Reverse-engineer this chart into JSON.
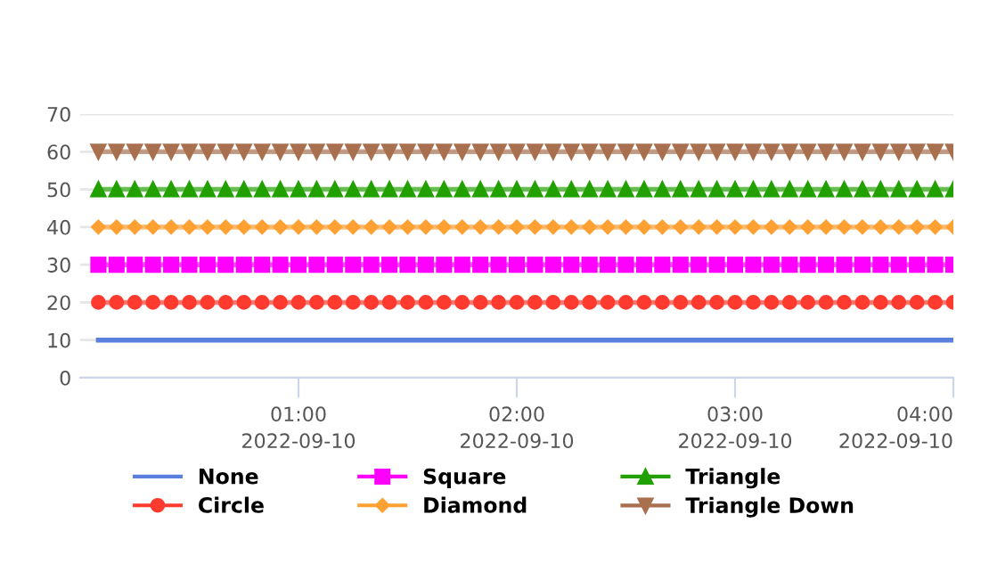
{
  "chart_data": {
    "type": "line",
    "x": [
      "2022-09-10T00:05",
      "2022-09-10T00:10",
      "2022-09-10T00:15",
      "2022-09-10T00:20",
      "2022-09-10T00:25",
      "2022-09-10T00:30",
      "2022-09-10T00:35",
      "2022-09-10T00:40",
      "2022-09-10T00:45",
      "2022-09-10T00:50",
      "2022-09-10T00:55",
      "2022-09-10T01:00",
      "2022-09-10T01:05",
      "2022-09-10T01:10",
      "2022-09-10T01:15",
      "2022-09-10T01:20",
      "2022-09-10T01:25",
      "2022-09-10T01:30",
      "2022-09-10T01:35",
      "2022-09-10T01:40",
      "2022-09-10T01:45",
      "2022-09-10T01:50",
      "2022-09-10T01:55",
      "2022-09-10T02:00",
      "2022-09-10T02:05",
      "2022-09-10T02:10",
      "2022-09-10T02:15",
      "2022-09-10T02:20",
      "2022-09-10T02:25",
      "2022-09-10T02:30",
      "2022-09-10T02:35",
      "2022-09-10T02:40",
      "2022-09-10T02:45",
      "2022-09-10T02:50",
      "2022-09-10T02:55",
      "2022-09-10T03:00",
      "2022-09-10T03:05",
      "2022-09-10T03:10",
      "2022-09-10T03:15",
      "2022-09-10T03:20",
      "2022-09-10T03:25",
      "2022-09-10T03:30",
      "2022-09-10T03:35",
      "2022-09-10T03:40",
      "2022-09-10T03:45",
      "2022-09-10T03:50",
      "2022-09-10T03:55",
      "2022-09-10T04:00"
    ],
    "series": [
      {
        "name": "None",
        "color": "#5b7fdd",
        "marker": "none",
        "values": [
          10,
          10,
          10,
          10,
          10,
          10,
          10,
          10,
          10,
          10,
          10,
          10,
          10,
          10,
          10,
          10,
          10,
          10,
          10,
          10,
          10,
          10,
          10,
          10,
          10,
          10,
          10,
          10,
          10,
          10,
          10,
          10,
          10,
          10,
          10,
          10,
          10,
          10,
          10,
          10,
          10,
          10,
          10,
          10,
          10,
          10,
          10,
          10
        ]
      },
      {
        "name": "Circle",
        "color": "#ff3a2e",
        "marker": "circle",
        "values": [
          20,
          20,
          20,
          20,
          20,
          20,
          20,
          20,
          20,
          20,
          20,
          20,
          20,
          20,
          20,
          20,
          20,
          20,
          20,
          20,
          20,
          20,
          20,
          20,
          20,
          20,
          20,
          20,
          20,
          20,
          20,
          20,
          20,
          20,
          20,
          20,
          20,
          20,
          20,
          20,
          20,
          20,
          20,
          20,
          20,
          20,
          20,
          20
        ]
      },
      {
        "name": "Square",
        "color": "#ff00ff",
        "marker": "square",
        "values": [
          30,
          30,
          30,
          30,
          30,
          30,
          30,
          30,
          30,
          30,
          30,
          30,
          30,
          30,
          30,
          30,
          30,
          30,
          30,
          30,
          30,
          30,
          30,
          30,
          30,
          30,
          30,
          30,
          30,
          30,
          30,
          30,
          30,
          30,
          30,
          30,
          30,
          30,
          30,
          30,
          30,
          30,
          30,
          30,
          30,
          30,
          30,
          30
        ]
      },
      {
        "name": "Diamond",
        "color": "#ffa033",
        "marker": "diamond",
        "values": [
          40,
          40,
          40,
          40,
          40,
          40,
          40,
          40,
          40,
          40,
          40,
          40,
          40,
          40,
          40,
          40,
          40,
          40,
          40,
          40,
          40,
          40,
          40,
          40,
          40,
          40,
          40,
          40,
          40,
          40,
          40,
          40,
          40,
          40,
          40,
          40,
          40,
          40,
          40,
          40,
          40,
          40,
          40,
          40,
          40,
          40,
          40,
          40
        ]
      },
      {
        "name": "Triangle",
        "color": "#22a000",
        "marker": "triangle",
        "values": [
          50,
          50,
          50,
          50,
          50,
          50,
          50,
          50,
          50,
          50,
          50,
          50,
          50,
          50,
          50,
          50,
          50,
          50,
          50,
          50,
          50,
          50,
          50,
          50,
          50,
          50,
          50,
          50,
          50,
          50,
          50,
          50,
          50,
          50,
          50,
          50,
          50,
          50,
          50,
          50,
          50,
          50,
          50,
          50,
          50,
          50,
          50,
          50
        ]
      },
      {
        "name": "Triangle Down",
        "color": "#a8704f",
        "marker": "triangle_down",
        "values": [
          60,
          60,
          60,
          60,
          60,
          60,
          60,
          60,
          60,
          60,
          60,
          60,
          60,
          60,
          60,
          60,
          60,
          60,
          60,
          60,
          60,
          60,
          60,
          60,
          60,
          60,
          60,
          60,
          60,
          60,
          60,
          60,
          60,
          60,
          60,
          60,
          60,
          60,
          60,
          60,
          60,
          60,
          60,
          60,
          60,
          60,
          60,
          60
        ]
      }
    ],
    "xlim": [
      "2022-09-10T00:00",
      "2022-09-10T04:00"
    ],
    "xticks": [
      {
        "value": "2022-09-10T01:00",
        "label": "01:00\n2022-09-10"
      },
      {
        "value": "2022-09-10T02:00",
        "label": "02:00\n2022-09-10"
      },
      {
        "value": "2022-09-10T03:00",
        "label": "03:00\n2022-09-10"
      },
      {
        "value": "2022-09-10T04:00",
        "label": "04:00\n2022-09-10"
      }
    ],
    "ylim": [
      0,
      70
    ],
    "yticks": [
      0,
      10,
      20,
      30,
      40,
      50,
      60,
      70
    ],
    "grid": "y",
    "legend": "bottom"
  }
}
